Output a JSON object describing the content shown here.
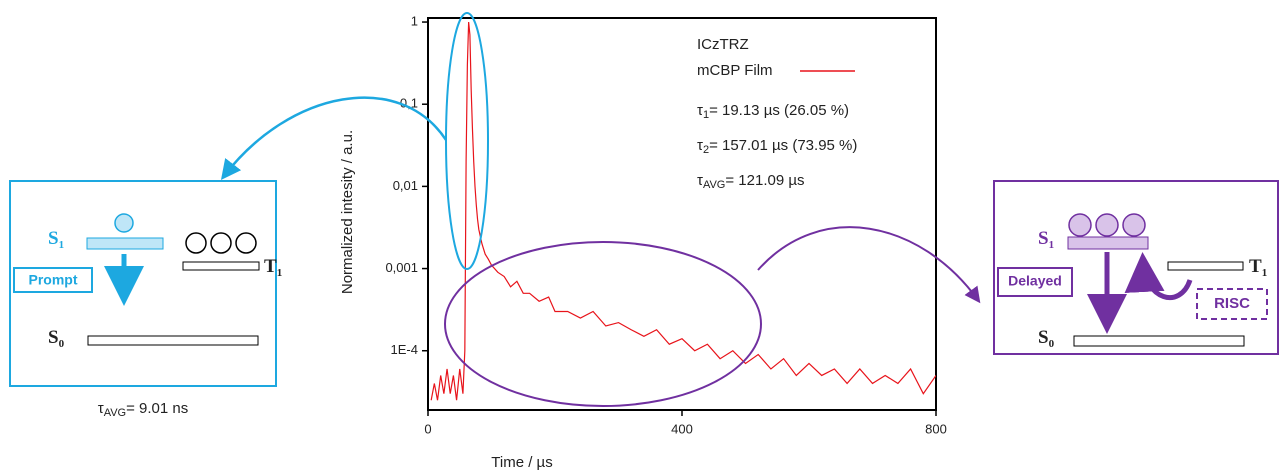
{
  "chart_data": {
    "type": "line",
    "xlabel": "Time / µs",
    "ylabel": "Normalized intesity / a.u.",
    "legend_title": "ICzTRZ",
    "x": [
      5,
      10,
      15,
      20,
      25,
      30,
      35,
      40,
      45,
      50,
      55,
      58,
      60,
      62,
      64,
      66,
      68,
      70,
      72,
      74,
      76,
      78,
      80,
      85,
      90,
      95,
      100,
      110,
      120,
      130,
      140,
      150,
      160,
      175,
      190,
      200,
      220,
      240,
      260,
      280,
      300,
      320,
      340,
      360,
      380,
      400,
      420,
      440,
      460,
      480,
      500,
      520,
      540,
      560,
      580,
      600,
      620,
      640,
      660,
      680,
      700,
      720,
      740,
      760,
      780,
      800
    ],
    "series": [
      {
        "name": "mCBP Film",
        "color": "#e8141b",
        "values": [
          2.5e-05,
          4e-05,
          2.5e-05,
          5e-05,
          3e-05,
          6e-05,
          3e-05,
          5e-05,
          2.5e-05,
          6e-05,
          3e-05,
          0.0001,
          0.02,
          0.3,
          1,
          0.7,
          0.15,
          0.05,
          0.02,
          0.01,
          0.006,
          0.004,
          0.003,
          0.002,
          0.0015,
          0.0013,
          0.0011,
          0.0009,
          0.0008,
          0.0006,
          0.0007,
          0.0005,
          0.0005,
          0.0004,
          0.00045,
          0.0003,
          0.0003,
          0.00025,
          0.0003,
          0.0002,
          0.00022,
          0.00018,
          0.00015,
          0.00018,
          0.00012,
          0.00014,
          0.0001,
          0.00012,
          8e-05,
          0.0001,
          7e-05,
          9e-05,
          6e-05,
          8e-05,
          5e-05,
          7e-05,
          5e-05,
          6e-05,
          4e-05,
          6e-05,
          4e-05,
          5e-05,
          4e-05,
          6e-05,
          3e-05,
          5e-05
        ]
      }
    ],
    "xlim": [
      0,
      800
    ],
    "xticks": [
      0,
      400,
      800
    ],
    "ylim": [
      1.9e-05,
      1.12
    ],
    "log_y": true,
    "yticks": [
      1,
      {
        "value": 0.1,
        "label": "0,1"
      },
      {
        "value": 0.01,
        "label": "0,01"
      },
      {
        "value": 0.001,
        "label": "0,001"
      },
      {
        "value": 0.0001,
        "label": "1E-4"
      }
    ],
    "annotations": [
      {
        "symbol": "τ",
        "sub": "1",
        "text": "= 19.13 µs (26.05 %)"
      },
      {
        "symbol": "τ",
        "sub": "2",
        "text": "= 157.01 µs (73.95 %)"
      },
      {
        "symbol": "τ",
        "sub": "AVG",
        "text": "= 121.09 µs"
      }
    ]
  },
  "diagrams": {
    "prompt": {
      "s1": [
        "S",
        "1"
      ],
      "t1": [
        "T",
        "1"
      ],
      "s0": [
        "S",
        "0"
      ],
      "process": "Prompt",
      "lifetime": {
        "symbol": "τ",
        "sub": "AVG",
        "text": "= 9.01 ns"
      }
    },
    "delayed": {
      "s1": [
        "S",
        "1"
      ],
      "t1": [
        "T",
        "1"
      ],
      "s0": [
        "S",
        "0"
      ],
      "process": "Delayed",
      "risc": "RISC"
    }
  }
}
